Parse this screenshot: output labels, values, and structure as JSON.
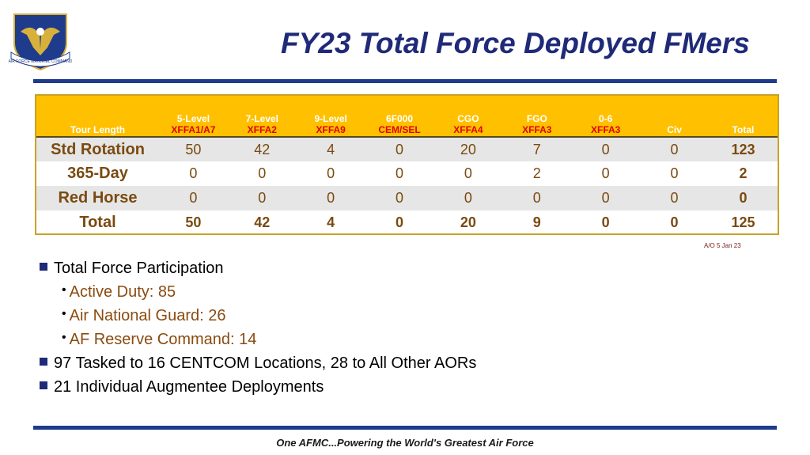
{
  "slide": {
    "title": "FY23 Total Force Deployed FMers",
    "logo_text": "AIR FORCE MATERIEL COMMAND"
  },
  "table": {
    "headers": [
      {
        "line1": "",
        "line2": "Tour Length"
      },
      {
        "line1": "5-Level",
        "line2": "XFFA1/A7"
      },
      {
        "line1": "7-Level",
        "line2": "XFFA2"
      },
      {
        "line1": "9-Level",
        "line2": "XFFA9"
      },
      {
        "line1": "6F000",
        "line2": "CEM/SEL"
      },
      {
        "line1": "CGO",
        "line2": "XFFA4"
      },
      {
        "line1": "FGO",
        "line2": "XFFA3"
      },
      {
        "line1": "0-6",
        "line2": "XFFA3"
      },
      {
        "line1": "",
        "line2": "Civ"
      },
      {
        "line1": "",
        "line2": "Total"
      }
    ],
    "rows": [
      {
        "label": "Std Rotation",
        "values": [
          "50",
          "42",
          "4",
          "0",
          "20",
          "7",
          "0",
          "0",
          "123"
        ]
      },
      {
        "label": "365-Day",
        "values": [
          "0",
          "0",
          "0",
          "0",
          "0",
          "2",
          "0",
          "0",
          "2"
        ]
      },
      {
        "label": "Red Horse",
        "values": [
          "0",
          "0",
          "0",
          "0",
          "0",
          "0",
          "0",
          "0",
          "0"
        ]
      },
      {
        "label": "Total",
        "values": [
          "50",
          "42",
          "4",
          "0",
          "20",
          "9",
          "0",
          "0",
          "125"
        ]
      }
    ],
    "as_of": "A/O  5 Jan 23"
  },
  "bullets": {
    "participation": "Total Force Participation",
    "active_duty": "Active Duty: 85",
    "guard": "Air National Guard: 26",
    "reserve": "AF Reserve Command: 14",
    "tasked": "97 Tasked to 16 CENTCOM Locations, 28 to All Other AORs",
    "augmentee": "21 Individual Augmentee Deployments"
  },
  "footer": "One AFMC...Powering the World's Greatest Air Force",
  "colors": {
    "title": "#1f2a78",
    "rule": "#1f3c8c",
    "header_bg": "#ffc000",
    "header_code": "#e00000",
    "cell_text": "#7a4a10",
    "sub_bullet_text": "#8a4b10"
  }
}
